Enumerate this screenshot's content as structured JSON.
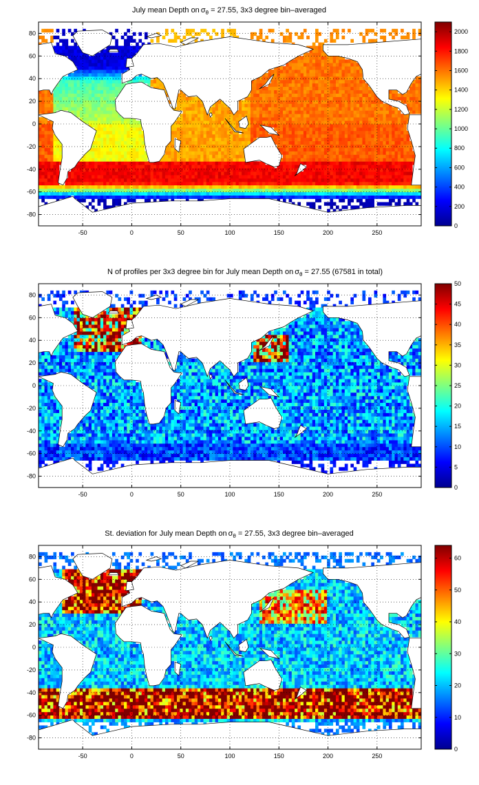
{
  "chart_data": [
    {
      "type": "heatmap",
      "title_prefix": "July mean Depth on",
      "title_symbol": "σ",
      "title_subscript": "θ",
      "title_suffix": " = 27.55, 3x3 degree bin–averaged",
      "xlim": [
        -95,
        295
      ],
      "ylim": [
        -90,
        90
      ],
      "xticks": [
        -50,
        0,
        50,
        100,
        150,
        200,
        250
      ],
      "yticks": [
        -80,
        -60,
        -40,
        -20,
        0,
        20,
        40,
        60,
        80
      ],
      "grid": true,
      "colorbar": {
        "range": [
          0,
          2100
        ],
        "ticks": [
          0,
          200,
          400,
          600,
          800,
          1000,
          1200,
          1400,
          1600,
          1800,
          2000
        ]
      },
      "field_summary": {
        "north_atlantic_subpolar": 200,
        "north_atlantic_subtropical": 900,
        "south_atlantic": 1300,
        "indian_ocean": 1500,
        "north_pacific": 1600,
        "south_pacific": 1650,
        "southern_ocean_40S": 1850,
        "southern_ocean_55S": 900,
        "antarctic_margin": 150
      }
    },
    {
      "type": "heatmap",
      "title_prefix": "N of profiles per 3x3 degree bin for July mean Depth on",
      "title_symbol": "σ",
      "title_subscript": "θ",
      "title_suffix": " = 27.55 (67581 in total)",
      "xlim": [
        -95,
        295
      ],
      "ylim": [
        -90,
        90
      ],
      "xticks": [
        -50,
        0,
        50,
        100,
        150,
        200,
        250
      ],
      "yticks": [
        -80,
        -60,
        -40,
        -20,
        0,
        20,
        40,
        60,
        80
      ],
      "grid": true,
      "colorbar": {
        "range": [
          0,
          50
        ],
        "ticks": [
          0,
          5,
          10,
          15,
          20,
          25,
          30,
          35,
          40,
          45,
          50
        ]
      },
      "field_summary": {
        "north_atlantic": 40,
        "kuroshio": 45,
        "open_ocean": 15,
        "southern_ocean": 10
      }
    },
    {
      "type": "heatmap",
      "title_prefix": "St. deviation for July mean Depth on",
      "title_symbol": "σ",
      "title_subscript": "θ",
      "title_suffix": " = 27.55, 3x3 degree bin–averaged",
      "xlim": [
        -95,
        295
      ],
      "ylim": [
        -90,
        90
      ],
      "xticks": [
        -50,
        0,
        50,
        100,
        150,
        200,
        250
      ],
      "yticks": [
        -80,
        -60,
        -40,
        -20,
        0,
        20,
        40,
        60,
        80
      ],
      "grid": true,
      "colorbar": {
        "range": [
          0,
          64
        ],
        "ticks": [
          0,
          10,
          20,
          30,
          40,
          50,
          60
        ]
      },
      "field_summary": {
        "north_atlantic": 62,
        "southern_ocean_band": 64,
        "north_pacific_west": 45,
        "open_ocean": 22
      }
    }
  ]
}
